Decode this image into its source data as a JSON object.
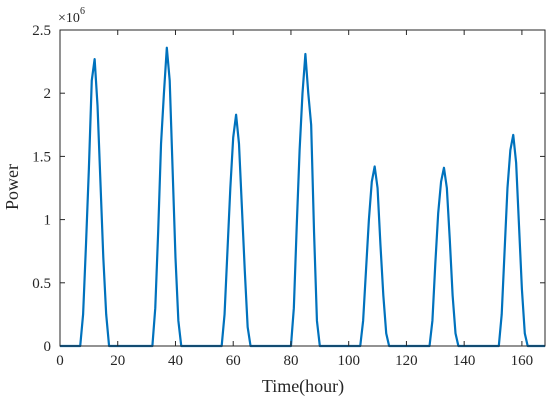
{
  "chart_data": {
    "type": "line",
    "title": "",
    "xlabel": "Time(hour)",
    "ylabel": "Power",
    "xlim": [
      0,
      168
    ],
    "ylim": [
      0,
      2500000
    ],
    "y_multiplier": "×10",
    "y_multiplier_exponent": "6",
    "x_ticks": [
      0,
      20,
      40,
      60,
      80,
      100,
      120,
      140,
      160
    ],
    "x_tick_labels": [
      "0",
      "20",
      "40",
      "60",
      "80",
      "100",
      "120",
      "140",
      "160"
    ],
    "y_ticks": [
      0,
      500000,
      1000000,
      1500000,
      2000000,
      2500000
    ],
    "y_tick_labels": [
      "0",
      "0.5",
      "1",
      "1.5",
      "2",
      "2.5"
    ],
    "grid": false,
    "color": "#0072BD",
    "series": [
      {
        "x": [
          0,
          7,
          8,
          9,
          10,
          11,
          12,
          13,
          14,
          15,
          16,
          17,
          18,
          31,
          32,
          33,
          34,
          35,
          36,
          37,
          38,
          39,
          40,
          41,
          42,
          55,
          56,
          57,
          58,
          59,
          60,
          61,
          62,
          63,
          64,
          65,
          66,
          79,
          80,
          81,
          82,
          83,
          84,
          85,
          86,
          87,
          88,
          89,
          90,
          103,
          104,
          105,
          106,
          107,
          108,
          109,
          110,
          111,
          112,
          113,
          114,
          127,
          128,
          129,
          130,
          131,
          132,
          133,
          134,
          135,
          136,
          137,
          138,
          151,
          152,
          153,
          154,
          155,
          156,
          157,
          158,
          159,
          160,
          161,
          162,
          168
        ],
        "y": [
          0,
          0,
          250000,
          800000,
          1400000,
          2100000,
          2270000,
          1900000,
          1300000,
          700000,
          250000,
          0,
          0,
          0,
          0,
          300000,
          900000,
          1600000,
          2000000,
          2360000,
          2100000,
          1400000,
          700000,
          200000,
          0,
          0,
          0,
          250000,
          750000,
          1250000,
          1650000,
          1830000,
          1600000,
          1100000,
          600000,
          150000,
          0,
          0,
          0,
          300000,
          950000,
          1550000,
          2000000,
          2310000,
          2000000,
          1750000,
          900000,
          200000,
          0,
          0,
          0,
          200000,
          600000,
          1000000,
          1300000,
          1420000,
          1250000,
          800000,
          400000,
          100000,
          0,
          0,
          0,
          200000,
          650000,
          1050000,
          1300000,
          1410000,
          1250000,
          850000,
          400000,
          100000,
          0,
          0,
          0,
          250000,
          750000,
          1250000,
          1550000,
          1670000,
          1450000,
          950000,
          450000,
          100000,
          0,
          0
        ]
      }
    ]
  }
}
